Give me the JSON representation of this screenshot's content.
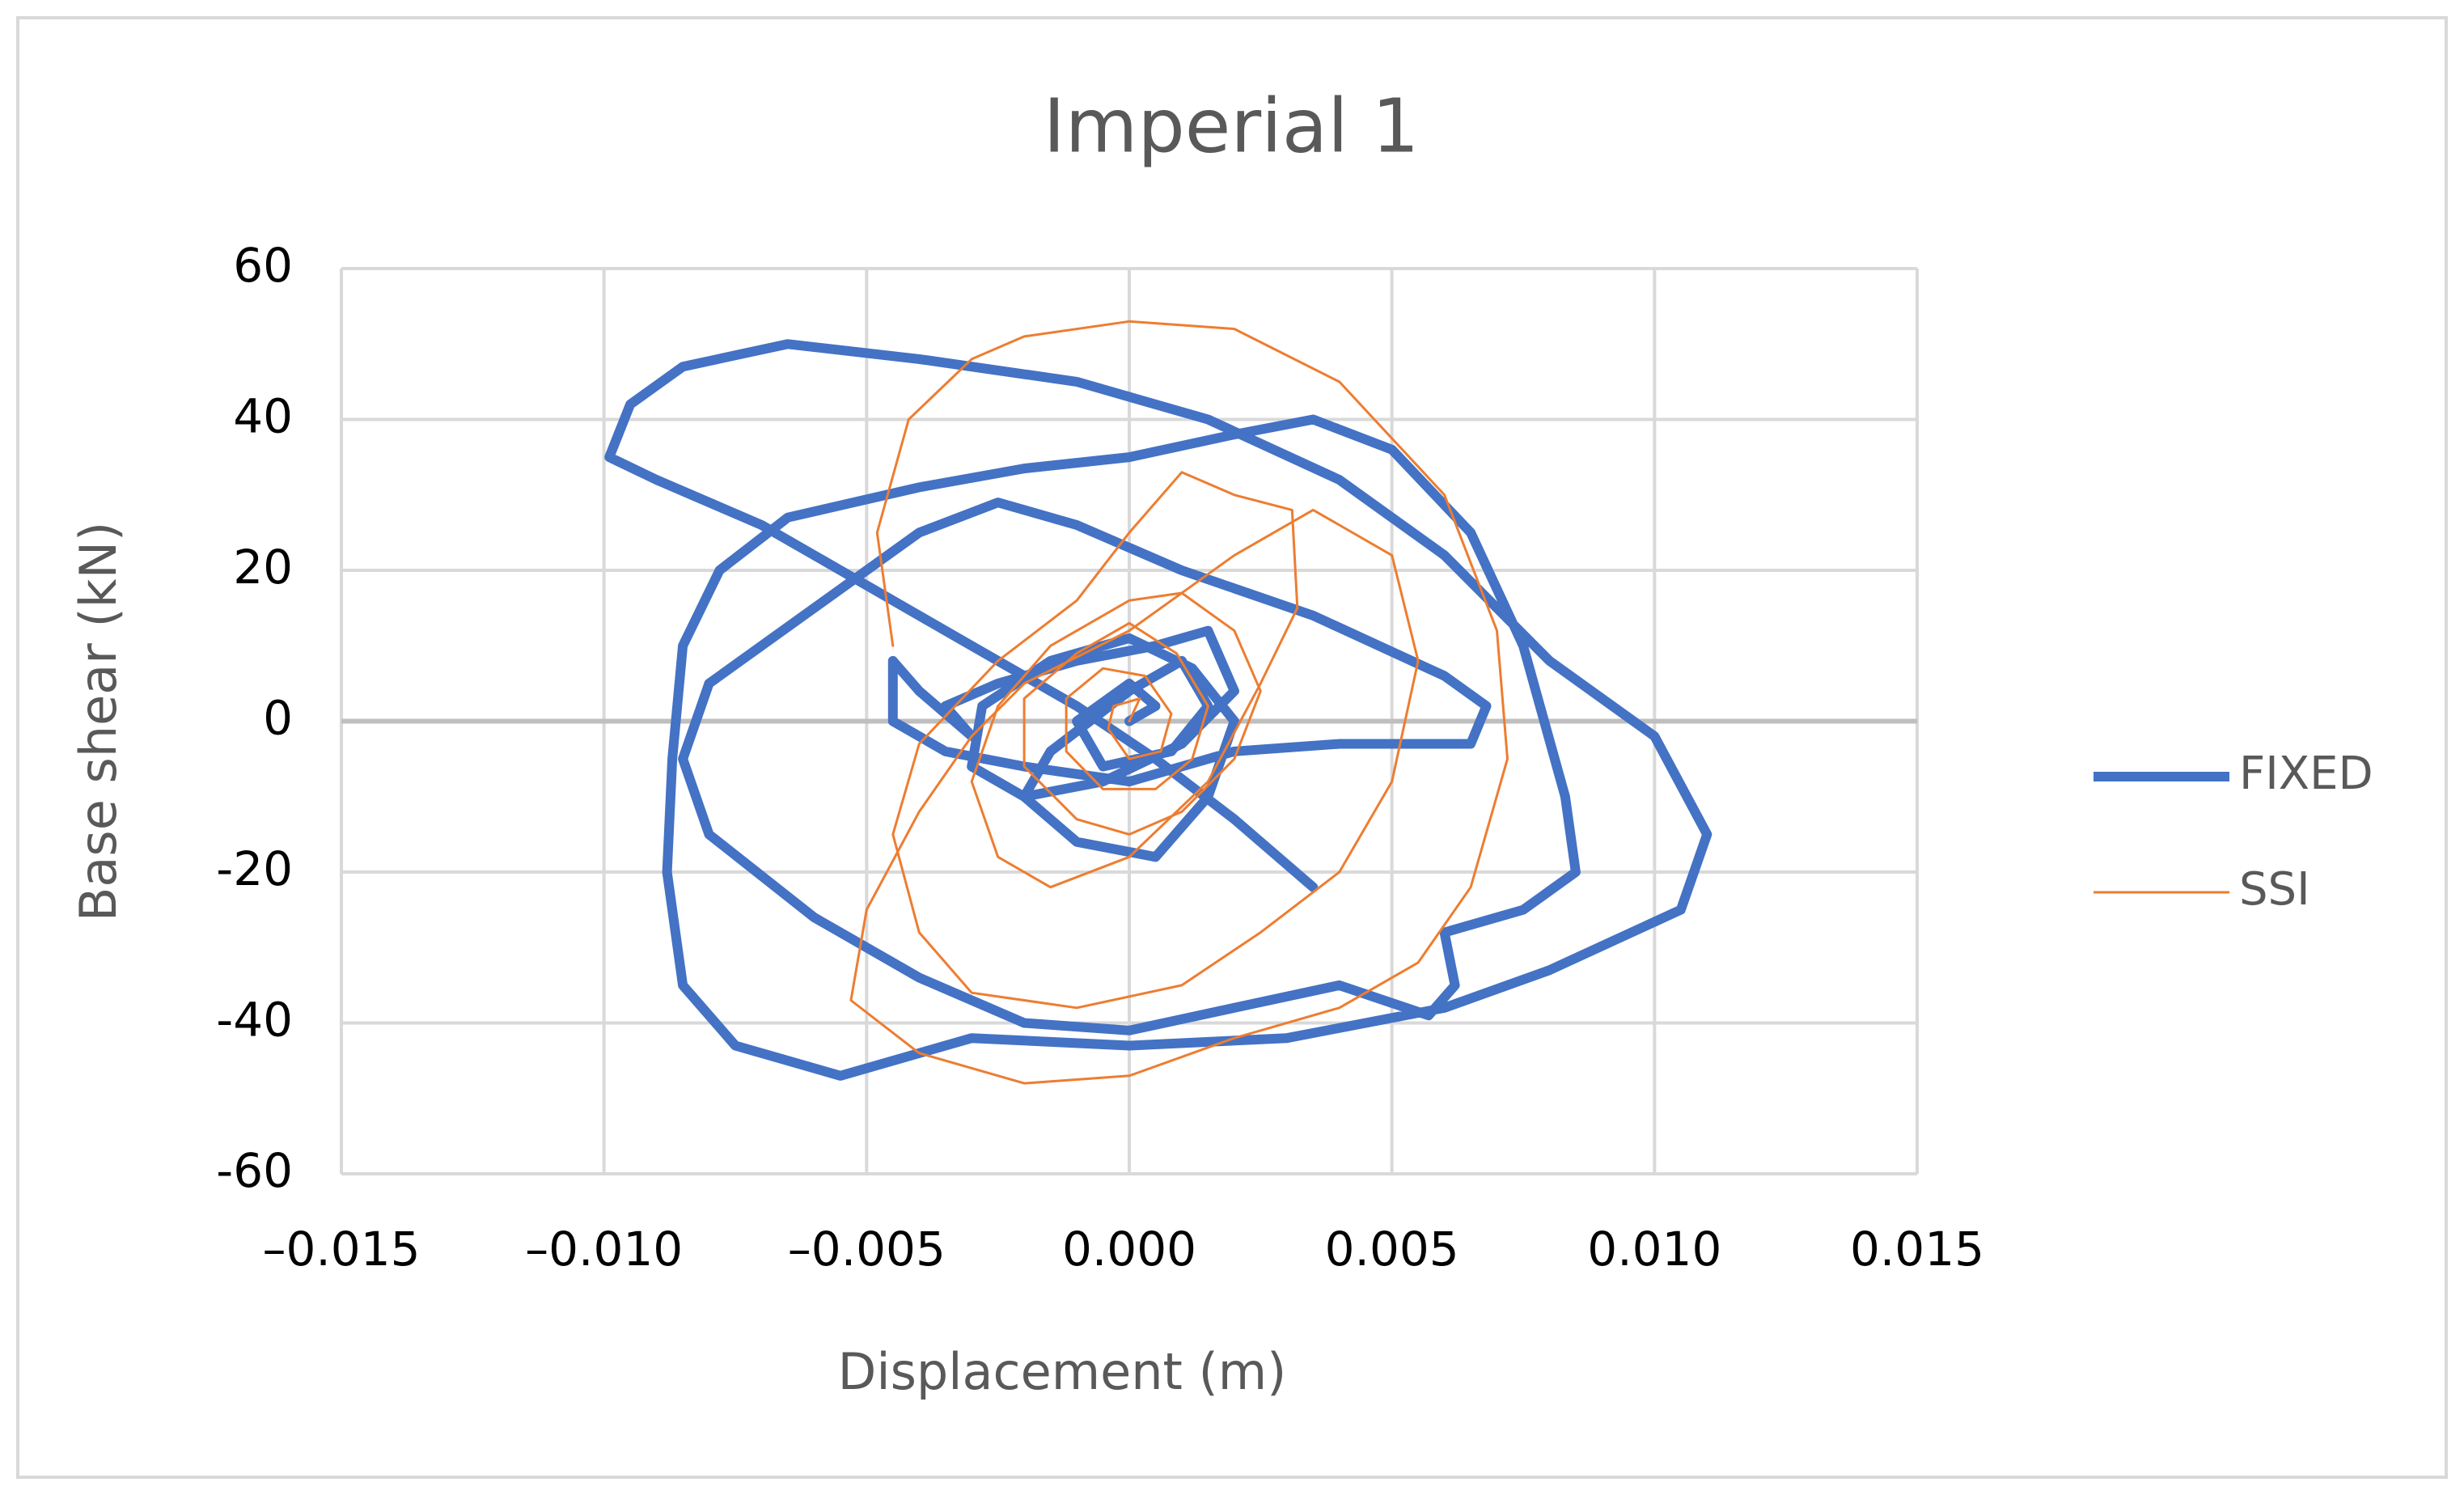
{
  "chart_data": {
    "type": "line",
    "title": "Imperial 1",
    "x_label": "Displacement (m)",
    "y_label": "Base shear (kN)",
    "xlim": [
      -0.015,
      0.015
    ],
    "xticks": [
      {
        "value": -0.015,
        "label": "–0.015"
      },
      {
        "value": -0.01,
        "label": "–0.010"
      },
      {
        "value": -0.005,
        "label": "–0.005"
      },
      {
        "value": 0,
        "label": "0.000"
      },
      0.005,
      {
        "value": 0.01,
        "label": "0.010"
      },
      0.015
    ],
    "ylim": [
      -60,
      60
    ],
    "yticks": [
      -60,
      -40,
      -20,
      0,
      20,
      40,
      60
    ],
    "grid": true,
    "legend": "right",
    "series": [
      {
        "name": "FIXED",
        "color": "#4472c4",
        "width": 12,
        "x": [
          0.0035,
          0.002,
          0.0005,
          -0.001,
          -0.003,
          -0.005,
          -0.007,
          -0.009,
          -0.0099,
          -0.0095,
          -0.0085,
          -0.0065,
          -0.004,
          -0.001,
          0.0015,
          0.004,
          0.006,
          0.008,
          0.01,
          0.011,
          0.0105,
          0.008,
          0.006,
          0.003,
          0,
          -0.003,
          -0.0055,
          -0.0075,
          -0.0085,
          -0.0088,
          -0.0087,
          -0.0085,
          -0.0078,
          -0.0065,
          -0.004,
          -0.002,
          0,
          0.002,
          0.0035,
          0.005,
          0.0065,
          0.0075,
          0.0083,
          0.0085,
          0.0075,
          0.006,
          0.0062,
          0.0057,
          0.004,
          0.002,
          0,
          -0.002,
          -0.004,
          -0.006,
          -0.008,
          -0.0085,
          -0.008,
          -0.006,
          -0.004,
          -0.0025,
          -0.001,
          0.001,
          0.0035,
          0.006,
          0.0068,
          0.0065,
          0.004,
          0.002,
          0,
          -0.002,
          -0.0035,
          -0.0045,
          -0.0045,
          -0.004,
          -0.003,
          -0.0035,
          -0.0025,
          -0.001,
          0.0005,
          0.0015,
          0.002,
          0.001,
          -0.0005,
          -0.002,
          -0.003,
          -0.0028,
          -0.0015,
          0,
          0.0012,
          0.002,
          0.0015,
          0.0005,
          -0.001,
          -0.002,
          -0.0015,
          0,
          0.001,
          0.0015,
          0.0008,
          -0.0005,
          -0.001,
          0,
          0.0005,
          0
        ],
        "y": [
          -22,
          -13,
          -5,
          2,
          10,
          18,
          26,
          32,
          35,
          42,
          47,
          50,
          48,
          45,
          40,
          32,
          22,
          8,
          -2,
          -15,
          -25,
          -33,
          -38,
          -42,
          -43,
          -42,
          -47,
          -43,
          -35,
          -20,
          -5,
          10,
          20,
          27,
          31,
          33.5,
          35,
          38,
          40,
          36,
          25,
          10,
          -10,
          -20,
          -25,
          -28,
          -35,
          -39,
          -35,
          -38,
          -41,
          -40,
          -34,
          -26,
          -15,
          -5,
          5,
          15,
          25,
          29,
          26,
          20,
          14,
          6,
          2,
          -3,
          -3,
          -4,
          -8,
          -6,
          -4,
          0,
          8,
          4,
          -2,
          2,
          5,
          8,
          10,
          12,
          4,
          -3,
          -8,
          -10,
          -6,
          2,
          8,
          11,
          7,
          0,
          -10,
          -18,
          -16,
          -10,
          -4,
          4,
          8,
          2,
          -4,
          -6,
          0,
          5,
          2,
          0
        ]
      },
      {
        "name": "SSI",
        "color": "#ed7d31",
        "width": 3,
        "x": [
          -0.0045,
          -0.0048,
          -0.0042,
          -0.003,
          -0.002,
          0,
          0.002,
          0.004,
          0.006,
          0.007,
          0.0072,
          0.0065,
          0.0055,
          0.004,
          0.002,
          0,
          -0.002,
          -0.004,
          -0.0053,
          -0.005,
          -0.004,
          -0.003,
          -0.002,
          0,
          0.002,
          0.0035,
          0.005,
          0.0055,
          0.005,
          0.004,
          0.0025,
          0.001,
          -0.001,
          -0.003,
          -0.004,
          -0.0045,
          -0.004,
          -0.0025,
          -0.001,
          0,
          0.001,
          0.002,
          0.0031,
          0.0032,
          0.0025,
          0.0015,
          0,
          -0.0015,
          -0.0025,
          -0.003,
          -0.0025,
          -0.0015,
          0,
          0.001,
          0.002,
          0.0025,
          0.002,
          0.001,
          0,
          -0.001,
          -0.002,
          -0.002,
          -0.001,
          0,
          0.0009,
          0.0015,
          0.0012,
          0.0005,
          -0.0005,
          -0.0012,
          -0.0012,
          -0.0005,
          0.0003,
          0.0008,
          0.0006,
          0,
          -0.0004,
          -0.0003,
          0.0002,
          0
        ],
        "y": [
          10,
          25,
          40,
          48,
          51,
          53,
          52,
          45,
          30,
          12,
          -5,
          -22,
          -32,
          -38,
          -42,
          -47,
          -48,
          -44,
          -37,
          -25,
          -12,
          -2,
          5,
          12,
          22,
          28,
          22,
          8,
          -8,
          -20,
          -28,
          -35,
          -38,
          -36,
          -28,
          -15,
          -3,
          8,
          16,
          25,
          33,
          30,
          28,
          15,
          5,
          -8,
          -18,
          -22,
          -18,
          -8,
          2,
          10,
          16,
          17,
          12,
          4,
          -5,
          -12,
          -15,
          -13,
          -6,
          3,
          9,
          13,
          9,
          2,
          -5,
          -9,
          -9,
          -4,
          3,
          7,
          6,
          1,
          -4,
          -5,
          -1,
          2,
          3,
          0
        ]
      }
    ]
  }
}
